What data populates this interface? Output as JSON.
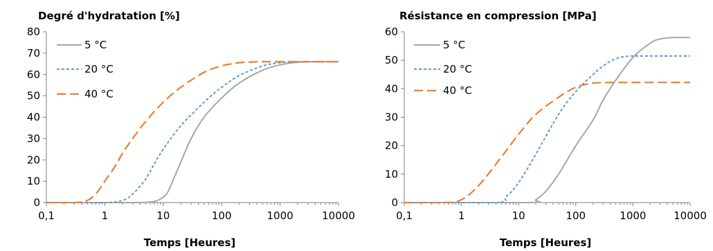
{
  "chart_data": [
    {
      "type": "line",
      "title": "Degré d'hydratation [%]",
      "xlabel": "Temps [Heures]",
      "ylabel": "",
      "xscale": "log",
      "xlim": [
        0.1,
        10000
      ],
      "ylim": [
        0,
        80
      ],
      "xticks": [
        "0,1",
        "1",
        "10",
        "100",
        "1000",
        "10000"
      ],
      "yticks": [
        "0",
        "10",
        "20",
        "30",
        "40",
        "50",
        "60",
        "70",
        "80"
      ],
      "grid": false,
      "legend_position": "top-left",
      "series": [
        {
          "name": "5 °C",
          "color": "#a6a6a6",
          "dash": "solid",
          "x": [
            0.1,
            3,
            6,
            8,
            10,
            12,
            15,
            20,
            30,
            50,
            100,
            200,
            500,
            1000,
            2000,
            5000,
            10000
          ],
          "y": [
            0,
            0,
            0.3,
            1,
            2.5,
            5,
            11,
            19,
            30,
            40,
            49,
            56,
            62,
            64.5,
            65.7,
            66,
            66
          ]
        },
        {
          "name": "20 °C",
          "color": "#5b9bd5",
          "dash": "dotted",
          "x": [
            0.1,
            1,
            2,
            3,
            5,
            7,
            10,
            20,
            50,
            100,
            200,
            500,
            1000,
            2000,
            5000,
            10000
          ],
          "y": [
            0,
            0,
            1,
            4,
            11,
            18,
            25,
            36,
            47,
            54,
            59.5,
            64,
            65.5,
            66,
            66,
            66
          ]
        },
        {
          "name": "40 °C",
          "color": "#ed7d31",
          "dash": "dashed",
          "x": [
            0.1,
            0.3,
            0.5,
            0.7,
            1,
            1.5,
            2,
            3,
            5,
            10,
            20,
            50,
            100,
            200,
            500,
            1000,
            10000
          ],
          "y": [
            0,
            0,
            1,
            4,
            10,
            17,
            23,
            30,
            38,
            47,
            54,
            61,
            64,
            65.5,
            66,
            66,
            66
          ]
        }
      ]
    },
    {
      "type": "line",
      "title": "Résistance en compression [MPa]",
      "xlabel": "Temps [Heures]",
      "ylabel": "",
      "xscale": "log",
      "xlim": [
        0.1,
        10000
      ],
      "ylim": [
        0,
        60
      ],
      "xticks": [
        "0,1",
        "1",
        "10",
        "100",
        "1000",
        "10000"
      ],
      "yticks": [
        "0",
        "10",
        "20",
        "30",
        "40",
        "50",
        "60"
      ],
      "grid": false,
      "legend_position": "top-left",
      "series": [
        {
          "name": "5 °C",
          "color": "#a6a6a6",
          "dash": "solid",
          "x": [
            0.1,
            15,
            20,
            30,
            50,
            100,
            200,
            300,
            500,
            1000,
            2000,
            3000,
            5000,
            10000
          ],
          "y": [
            0,
            0,
            1,
            4,
            10,
            20,
            29,
            36,
            43,
            51,
            56,
            57.5,
            58,
            58
          ]
        },
        {
          "name": "20 °C",
          "color": "#5b9bd5",
          "dash": "dotted",
          "x": [
            0.1,
            4,
            6,
            10,
            20,
            50,
            100,
            200,
            300,
            500,
            1000,
            10000
          ],
          "y": [
            0,
            0,
            2,
            7,
            17,
            31,
            39,
            45,
            48,
            50.5,
            51.5,
            51.5
          ]
        },
        {
          "name": "40 °C",
          "color": "#ed7d31",
          "dash": "dashed",
          "x": [
            0.1,
            0.5,
            1,
            2,
            5,
            10,
            20,
            50,
            100,
            200,
            500,
            10000
          ],
          "y": [
            0,
            0,
            1,
            6,
            16,
            24,
            31,
            37,
            40.5,
            42,
            42.2,
            42.2
          ]
        }
      ]
    }
  ]
}
